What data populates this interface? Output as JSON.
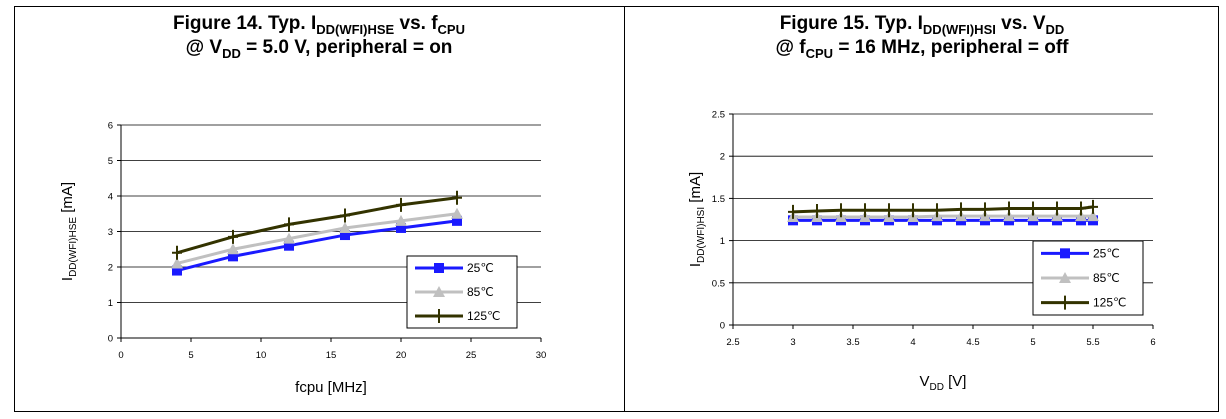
{
  "chart_data": [
    {
      "type": "line",
      "title_parts": [
        {
          "t": "Figure 14. Typ. I",
          "s": false
        },
        {
          "t": "DD(WFI)HSE",
          "s": true
        },
        {
          "t": " vs. f",
          "s": false
        },
        {
          "t": "CPU",
          "s": true
        }
      ],
      "subtitle_parts": [
        {
          "t": "@ V",
          "s": false
        },
        {
          "t": "DD",
          "s": true
        },
        {
          "t": " = 5.0 V, peripheral = on",
          "s": false
        }
      ],
      "xlabel": "fcpu [MHz]",
      "ylabel_main": "I",
      "ylabel_sub": "DD(WFI)HSE",
      "ylabel_unit": "[mA]",
      "xlim": [
        0,
        30
      ],
      "ylim": [
        0,
        6
      ],
      "xticks": [
        0,
        5,
        10,
        15,
        20,
        25,
        30
      ],
      "yticks": [
        0,
        1,
        2,
        3,
        4,
        5,
        6
      ],
      "grid": "horizontal",
      "legend_position": "bottom-right",
      "series": [
        {
          "name": "25℃",
          "color": "#1a1aff",
          "marker": "square",
          "x": [
            4,
            8,
            12,
            16,
            20,
            24
          ],
          "y": [
            1.9,
            2.3,
            2.6,
            2.9,
            3.1,
            3.3
          ]
        },
        {
          "name": "85℃",
          "color": "#c0c0c0",
          "marker": "triangle",
          "x": [
            4,
            8,
            12,
            16,
            20,
            24
          ],
          "y": [
            2.1,
            2.5,
            2.8,
            3.1,
            3.3,
            3.5
          ]
        },
        {
          "name": "125℃",
          "color": "#333300",
          "marker": "plus",
          "x": [
            4,
            8,
            12,
            16,
            20,
            24
          ],
          "y": [
            2.4,
            2.85,
            3.2,
            3.45,
            3.75,
            3.95
          ]
        }
      ]
    },
    {
      "type": "line",
      "title_parts": [
        {
          "t": "Figure 15. Typ. I",
          "s": false
        },
        {
          "t": "DD(WFI)HSI",
          "s": true
        },
        {
          "t": " vs. V",
          "s": false
        },
        {
          "t": "DD",
          "s": true
        }
      ],
      "subtitle_parts": [
        {
          "t": "@ f",
          "s": false
        },
        {
          "t": "CPU",
          "s": true
        },
        {
          "t": " = 16 MHz, peripheral = off",
          "s": false
        }
      ],
      "xlabel_main": "V",
      "xlabel_sub": "DD",
      "xlabel_unit": " [V]",
      "ylabel_main": "I",
      "ylabel_sub": "DD(WFI)HSI",
      "ylabel_unit": "[mA]",
      "xlim": [
        2.5,
        6
      ],
      "ylim": [
        0,
        2.5
      ],
      "xticks": [
        2.5,
        3,
        3.5,
        4,
        4.5,
        5,
        5.5,
        6
      ],
      "yticks": [
        0,
        0.5,
        1,
        1.5,
        2,
        2.5
      ],
      "grid": "horizontal",
      "legend_position": "bottom-right",
      "series": [
        {
          "name": "25℃",
          "color": "#1a1aff",
          "marker": "square",
          "x": [
            3,
            3.2,
            3.4,
            3.6,
            3.8,
            4,
            4.2,
            4.4,
            4.6,
            4.8,
            5,
            5.2,
            5.4,
            5.5
          ],
          "y": [
            1.24,
            1.24,
            1.24,
            1.24,
            1.24,
            1.24,
            1.24,
            1.24,
            1.24,
            1.24,
            1.24,
            1.24,
            1.24,
            1.24
          ]
        },
        {
          "name": "85℃",
          "color": "#c0c0c0",
          "marker": "triangle",
          "x": [
            3,
            3.2,
            3.4,
            3.6,
            3.8,
            4,
            4.2,
            4.4,
            4.6,
            4.8,
            5,
            5.2,
            5.4,
            5.5
          ],
          "y": [
            1.28,
            1.28,
            1.28,
            1.28,
            1.28,
            1.28,
            1.29,
            1.29,
            1.29,
            1.29,
            1.29,
            1.29,
            1.29,
            1.29
          ]
        },
        {
          "name": "125℃",
          "color": "#333300",
          "marker": "plus",
          "x": [
            3,
            3.2,
            3.4,
            3.6,
            3.8,
            4,
            4.2,
            4.4,
            4.6,
            4.8,
            5,
            5.2,
            5.4,
            5.5
          ],
          "y": [
            1.34,
            1.35,
            1.36,
            1.36,
            1.36,
            1.36,
            1.36,
            1.37,
            1.37,
            1.38,
            1.38,
            1.38,
            1.38,
            1.4
          ]
        }
      ]
    }
  ]
}
